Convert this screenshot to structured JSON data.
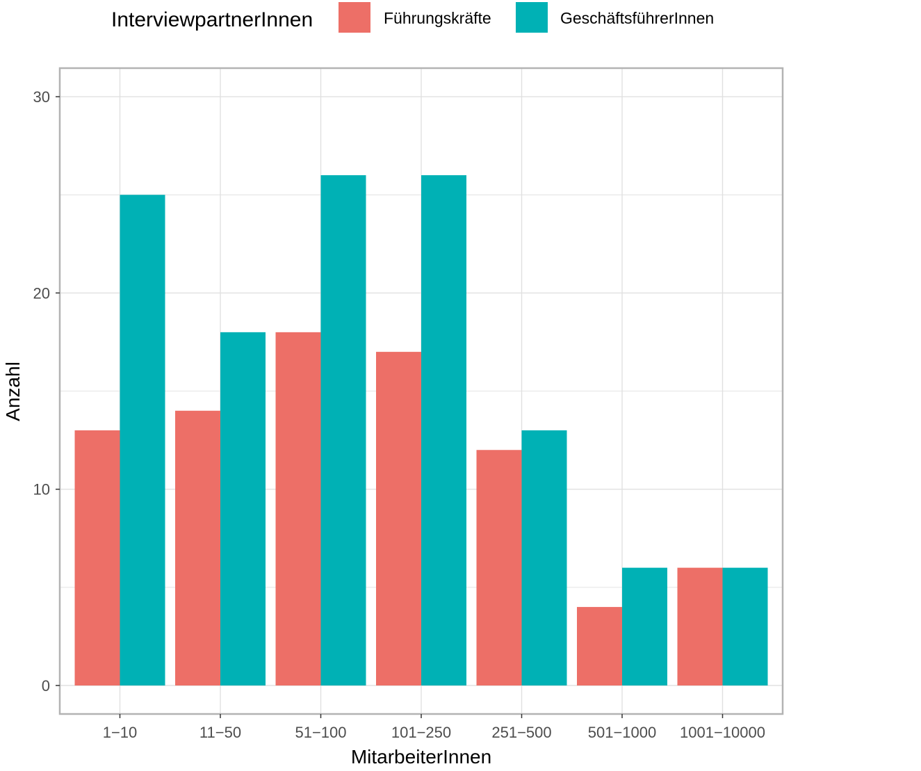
{
  "chart_data": {
    "type": "bar",
    "title": "",
    "xlabel": "MitarbeiterInnen",
    "ylabel": "Anzahl",
    "ylim": [
      0,
      30
    ],
    "y_ticks": [
      "0",
      "10",
      "20",
      "30"
    ],
    "categories": [
      "1−10",
      "11−50",
      "51−100",
      "101−250",
      "251−500",
      "501−1000",
      "1001−10000"
    ],
    "series": [
      {
        "name": "Führungskräfte",
        "color": "#ED6F67",
        "values": [
          13,
          14,
          18,
          17,
          12,
          4,
          6
        ]
      },
      {
        "name": "GeschäftsführerInnen",
        "color": "#00B1B5",
        "values": [
          25,
          18,
          26,
          26,
          13,
          6,
          6
        ]
      }
    ],
    "legend": {
      "title": "InterviewpartnerInnen",
      "position": "top"
    },
    "grid": true
  }
}
